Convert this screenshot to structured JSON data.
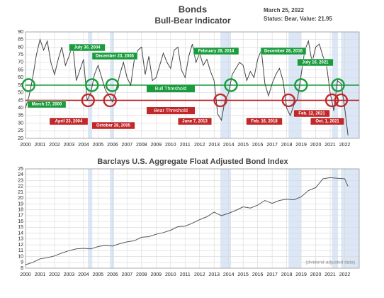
{
  "chart_data": [
    {
      "type": "line",
      "title": "Bonds",
      "subtitle": "Bull-Bear Indicator",
      "date": "March 25, 2022",
      "status": "Status: Bear, Value: 21.95",
      "x": [
        2000,
        2000.25,
        2000.5,
        2000.75,
        2001,
        2001.25,
        2001.5,
        2001.75,
        2002,
        2002.25,
        2002.5,
        2002.75,
        2003,
        2003.25,
        2003.5,
        2003.75,
        2004,
        2004.25,
        2004.5,
        2004.75,
        2005,
        2005.25,
        2005.5,
        2005.75,
        2006,
        2006.25,
        2006.5,
        2006.75,
        2007,
        2007.25,
        2007.5,
        2007.75,
        2008,
        2008.25,
        2008.5,
        2008.75,
        2009,
        2009.25,
        2009.5,
        2009.75,
        2010,
        2010.25,
        2010.5,
        2010.75,
        2011,
        2011.25,
        2011.5,
        2011.75,
        2012,
        2012.25,
        2012.5,
        2012.75,
        2013,
        2013.25,
        2013.5,
        2013.75,
        2014,
        2014.25,
        2014.5,
        2014.75,
        2015,
        2015.25,
        2015.5,
        2015.75,
        2016,
        2016.25,
        2016.5,
        2016.75,
        2017,
        2017.25,
        2017.5,
        2017.75,
        2018,
        2018.25,
        2018.5,
        2018.75,
        2019,
        2019.25,
        2019.5,
        2019.75,
        2020,
        2020.25,
        2020.5,
        2020.75,
        2021,
        2021.25,
        2021.5,
        2021.75,
        2022,
        2022.23
      ],
      "series": [
        {
          "color": "#444444",
          "values": [
            40,
            48,
            60,
            75,
            85,
            78,
            84,
            70,
            62,
            72,
            80,
            68,
            74,
            82,
            58,
            65,
            72,
            45,
            50,
            62,
            68,
            60,
            52,
            48,
            44,
            52,
            62,
            70,
            60,
            55,
            72,
            78,
            80,
            62,
            74,
            58,
            60,
            68,
            76,
            70,
            66,
            78,
            80,
            65,
            60,
            74,
            82,
            70,
            76,
            68,
            72,
            64,
            58,
            36,
            32,
            45,
            50,
            62,
            66,
            70,
            68,
            58,
            64,
            60,
            72,
            78,
            56,
            48,
            56,
            62,
            66,
            58,
            40,
            35,
            42,
            46,
            62,
            78,
            84,
            70,
            80,
            82,
            74,
            68,
            50,
            38,
            58,
            56,
            40,
            21.95
          ]
        }
      ],
      "thresholds": [
        {
          "label": "Bull Threshold",
          "value": 55,
          "color": "#1a9c3e"
        },
        {
          "label": "Bear Threshold",
          "value": 45,
          "color": "#c0282a"
        }
      ],
      "annotations": [
        {
          "label": "March 17, 2000",
          "x": 2000.21,
          "y": 55,
          "color": "#1a9c3e"
        },
        {
          "label": "July 30, 2004",
          "x": 2004.58,
          "y": 55,
          "color": "#1a9c3e"
        },
        {
          "label": "December 23, 2005",
          "x": 2005.98,
          "y": 55,
          "color": "#1a9c3e"
        },
        {
          "label": "February 28, 2014",
          "x": 2014.16,
          "y": 55,
          "color": "#1a9c3e"
        },
        {
          "label": "December 28, 2018",
          "x": 2018.99,
          "y": 55,
          "color": "#1a9c3e"
        },
        {
          "label": "July 16, 2021",
          "x": 2021.54,
          "y": 55,
          "color": "#1a9c3e"
        },
        {
          "label": "April 23, 2004",
          "x": 2004.31,
          "y": 45,
          "color": "#c0282a"
        },
        {
          "label": "October 28, 2005",
          "x": 2005.82,
          "y": 45,
          "color": "#c0282a"
        },
        {
          "label": "June 7, 2013",
          "x": 2013.43,
          "y": 45,
          "color": "#c0282a"
        },
        {
          "label": "Feb. 16, 2018",
          "x": 2018.13,
          "y": 45,
          "color": "#c0282a"
        },
        {
          "label": "Feb. 12, 2021",
          "x": 2021.12,
          "y": 45,
          "color": "#c0282a"
        },
        {
          "label": "Oct. 1, 2021",
          "x": 2021.75,
          "y": 45,
          "color": "#c0282a"
        }
      ],
      "shaded_periods": [
        [
          2004.3,
          2004.6
        ],
        [
          2005.82,
          2006.1
        ],
        [
          2013.43,
          2014.16
        ],
        [
          2018.13,
          2018.99
        ],
        [
          2021.12,
          2021.54
        ],
        [
          2021.75,
          2023
        ]
      ],
      "shade_color": "#dbe7f6",
      "xlim": [
        2000,
        2023
      ],
      "xticks": [
        2000,
        2001,
        2002,
        2003,
        2004,
        2005,
        2006,
        2007,
        2008,
        2009,
        2010,
        2011,
        2012,
        2013,
        2014,
        2015,
        2016,
        2017,
        2018,
        2019,
        2020,
        2021,
        2022
      ],
      "ylim": [
        20,
        90
      ],
      "yticks": [
        20,
        25,
        30,
        35,
        40,
        45,
        50,
        55,
        60,
        65,
        70,
        75,
        80,
        85,
        90
      ],
      "grid": true
    },
    {
      "type": "line",
      "title": "Barclays U.S. Aggregate Float Adjusted Bond Index",
      "note": "(dividend-adjusted data)",
      "x": [
        2000,
        2000.5,
        2001,
        2001.5,
        2002,
        2002.5,
        2003,
        2003.5,
        2004,
        2004.5,
        2005,
        2005.5,
        2006,
        2006.5,
        2007,
        2007.5,
        2008,
        2008.5,
        2009,
        2009.5,
        2010,
        2010.5,
        2011,
        2011.5,
        2012,
        2012.5,
        2013,
        2013.5,
        2014,
        2014.5,
        2015,
        2015.5,
        2016,
        2016.5,
        2017,
        2017.5,
        2018,
        2018.5,
        2019,
        2019.5,
        2020,
        2020.5,
        2021,
        2021.5,
        2022,
        2022.23
      ],
      "series": [
        {
          "color": "#555555",
          "values": [
            8.6,
            9.0,
            9.6,
            9.8,
            10.1,
            10.6,
            11.0,
            11.3,
            11.4,
            11.3,
            11.7,
            11.9,
            11.8,
            12.2,
            12.5,
            12.7,
            13.3,
            13.4,
            13.8,
            14.1,
            14.5,
            15.1,
            15.2,
            15.7,
            16.3,
            16.8,
            17.6,
            17.0,
            17.4,
            17.9,
            18.5,
            18.3,
            18.8,
            19.6,
            19.1,
            19.6,
            19.8,
            19.7,
            20.2,
            21.3,
            21.8,
            23.3,
            23.5,
            23.4,
            23.3,
            22.0
          ]
        }
      ],
      "shaded_periods": [
        [
          2004.3,
          2004.6
        ],
        [
          2005.82,
          2006.1
        ],
        [
          2013.43,
          2014.16
        ],
        [
          2018.13,
          2018.99
        ],
        [
          2021.12,
          2021.54
        ],
        [
          2021.75,
          2023
        ]
      ],
      "shade_color": "#dbe7f6",
      "xlim": [
        2000,
        2023
      ],
      "xticks": [
        2000,
        2001,
        2002,
        2003,
        2004,
        2005,
        2006,
        2007,
        2008,
        2009,
        2010,
        2011,
        2012,
        2013,
        2014,
        2015,
        2016,
        2017,
        2018,
        2019,
        2020,
        2021,
        2022
      ],
      "ylim": [
        8,
        25
      ],
      "yticks": [
        8,
        9,
        10,
        11,
        12,
        13,
        14,
        15,
        16,
        17,
        18,
        19,
        20,
        21,
        22,
        23,
        24,
        25
      ],
      "grid": true
    }
  ]
}
